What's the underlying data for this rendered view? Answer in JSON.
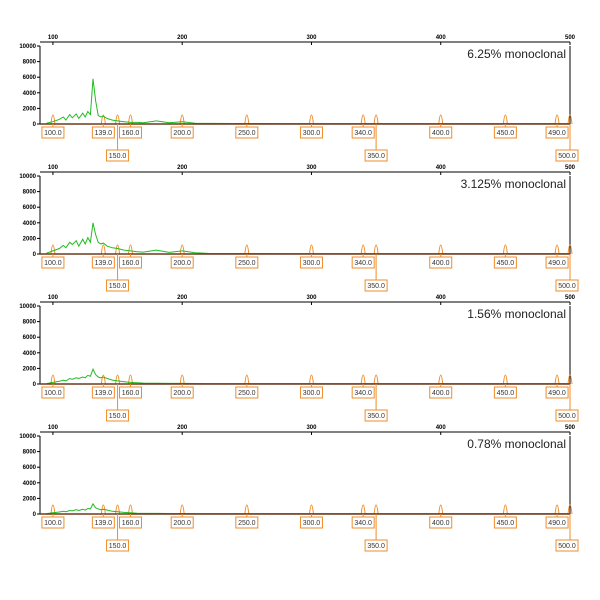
{
  "chart_data": [
    {
      "type": "line",
      "title": "6.25% monoclonal",
      "top_ticks": [
        100,
        200,
        300,
        400,
        500
      ],
      "y_ticks": [
        0,
        2000,
        4000,
        6000,
        8000,
        10000
      ],
      "ylim": [
        0,
        10000
      ],
      "xlim": [
        90,
        500
      ],
      "size_standard": {
        "row1": [
          "100.0",
          "139.0",
          "160.0",
          "200.0",
          "250.0",
          "300.0",
          "340.0",
          "400.0",
          "450.0",
          "490.0"
        ],
        "row2": [
          "150.0",
          "350.0",
          "500.0"
        ]
      },
      "series": [
        {
          "color": "#22bb22",
          "x": [
            95,
            100,
            105,
            108,
            110,
            113,
            115,
            118,
            120,
            123,
            125,
            127,
            129,
            131,
            133,
            135,
            137,
            139,
            142,
            146,
            150,
            155,
            160,
            165,
            170,
            180,
            190,
            200,
            210,
            220,
            240,
            260,
            280,
            300,
            350,
            400,
            500
          ],
          "y": [
            100,
            300,
            600,
            900,
            500,
            1200,
            800,
            1300,
            700,
            1400,
            900,
            1600,
            1200,
            5800,
            3000,
            1100,
            900,
            1000,
            700,
            500,
            400,
            300,
            200,
            200,
            150,
            400,
            150,
            300,
            100,
            80,
            60,
            60,
            50,
            50,
            50,
            50,
            50
          ]
        }
      ]
    },
    {
      "type": "line",
      "title": "3.125% monoclonal",
      "top_ticks": [
        100,
        200,
        300,
        400,
        500
      ],
      "y_ticks": [
        0,
        2000,
        4000,
        6000,
        8000,
        10000
      ],
      "ylim": [
        0,
        10000
      ],
      "xlim": [
        90,
        500
      ],
      "size_standard": {
        "row1": [
          "100.0",
          "139.0",
          "160.0",
          "200.0",
          "250.0",
          "300.0",
          "340.0",
          "400.0",
          "450.0",
          "490.0"
        ],
        "row2": [
          "150.0",
          "350.0",
          "500.0"
        ]
      },
      "series": [
        {
          "color": "#22bb22",
          "x": [
            95,
            100,
            105,
            108,
            110,
            113,
            115,
            118,
            120,
            123,
            125,
            127,
            129,
            131,
            133,
            135,
            137,
            139,
            142,
            146,
            150,
            155,
            160,
            165,
            170,
            180,
            190,
            200,
            210,
            220,
            240,
            260,
            280,
            300,
            350,
            400,
            500
          ],
          "y": [
            100,
            400,
            700,
            1100,
            800,
            1500,
            1200,
            1700,
            1000,
            1900,
            1300,
            2100,
            1500,
            4000,
            2500,
            1500,
            1300,
            1400,
            1000,
            800,
            700,
            500,
            400,
            300,
            250,
            500,
            200,
            400,
            150,
            80,
            60,
            60,
            50,
            50,
            50,
            50,
            50
          ]
        }
      ]
    },
    {
      "type": "line",
      "title": "1.56% monoclonal",
      "top_ticks": [
        100,
        200,
        300,
        400,
        500
      ],
      "y_ticks": [
        0,
        2000,
        4000,
        6000,
        8000,
        10000
      ],
      "ylim": [
        0,
        10000
      ],
      "xlim": [
        90,
        500
      ],
      "size_standard": {
        "row1": [
          "100.0",
          "139.0",
          "160.0",
          "200.0",
          "250.0",
          "300.0",
          "340.0",
          "400.0",
          "450.0",
          "490.0"
        ],
        "row2": [
          "150.0",
          "350.0",
          "500.0"
        ]
      },
      "series": [
        {
          "color": "#22bb22",
          "x": [
            95,
            100,
            105,
            108,
            110,
            113,
            115,
            118,
            120,
            123,
            125,
            127,
            129,
            131,
            133,
            135,
            137,
            139,
            142,
            146,
            150,
            155,
            160,
            165,
            170,
            180,
            190,
            200,
            210,
            220,
            240,
            260,
            280,
            300,
            350,
            400,
            500
          ],
          "y": [
            50,
            200,
            350,
            500,
            400,
            700,
            600,
            800,
            700,
            900,
            800,
            1100,
            1000,
            1900,
            1200,
            900,
            800,
            900,
            700,
            500,
            400,
            300,
            200,
            150,
            120,
            100,
            80,
            80,
            60,
            50,
            50,
            50,
            50,
            50,
            50,
            50,
            50
          ]
        }
      ]
    },
    {
      "type": "line",
      "title": "0.78% monoclonal",
      "top_ticks": [
        100,
        200,
        300,
        400,
        500
      ],
      "y_ticks": [
        0,
        2000,
        4000,
        6000,
        8000,
        10000
      ],
      "ylim": [
        0,
        10000
      ],
      "xlim": [
        90,
        500
      ],
      "size_standard": {
        "row1": [
          "100.0",
          "139.0",
          "160.0",
          "200.0",
          "250.0",
          "300.0",
          "340.0",
          "400.0",
          "450.0",
          "490.0"
        ],
        "row2": [
          "150.0",
          "350.0",
          "500.0"
        ]
      },
      "series": [
        {
          "color": "#22bb22",
          "x": [
            95,
            100,
            105,
            108,
            110,
            113,
            115,
            118,
            120,
            123,
            125,
            127,
            129,
            131,
            133,
            135,
            137,
            139,
            142,
            146,
            150,
            155,
            160,
            165,
            170,
            180,
            190,
            200,
            210,
            220,
            240,
            260,
            280,
            300,
            350,
            400,
            500
          ],
          "y": [
            50,
            150,
            250,
            350,
            300,
            450,
            400,
            550,
            450,
            600,
            500,
            700,
            650,
            1300,
            800,
            650,
            550,
            600,
            500,
            350,
            300,
            200,
            150,
            100,
            80,
            80,
            60,
            60,
            50,
            50,
            50,
            50,
            50,
            50,
            50,
            50,
            50
          ]
        }
      ]
    }
  ],
  "colors": {
    "trace": "#22bb22",
    "standard": "#f08c28",
    "axis": "#000000"
  }
}
